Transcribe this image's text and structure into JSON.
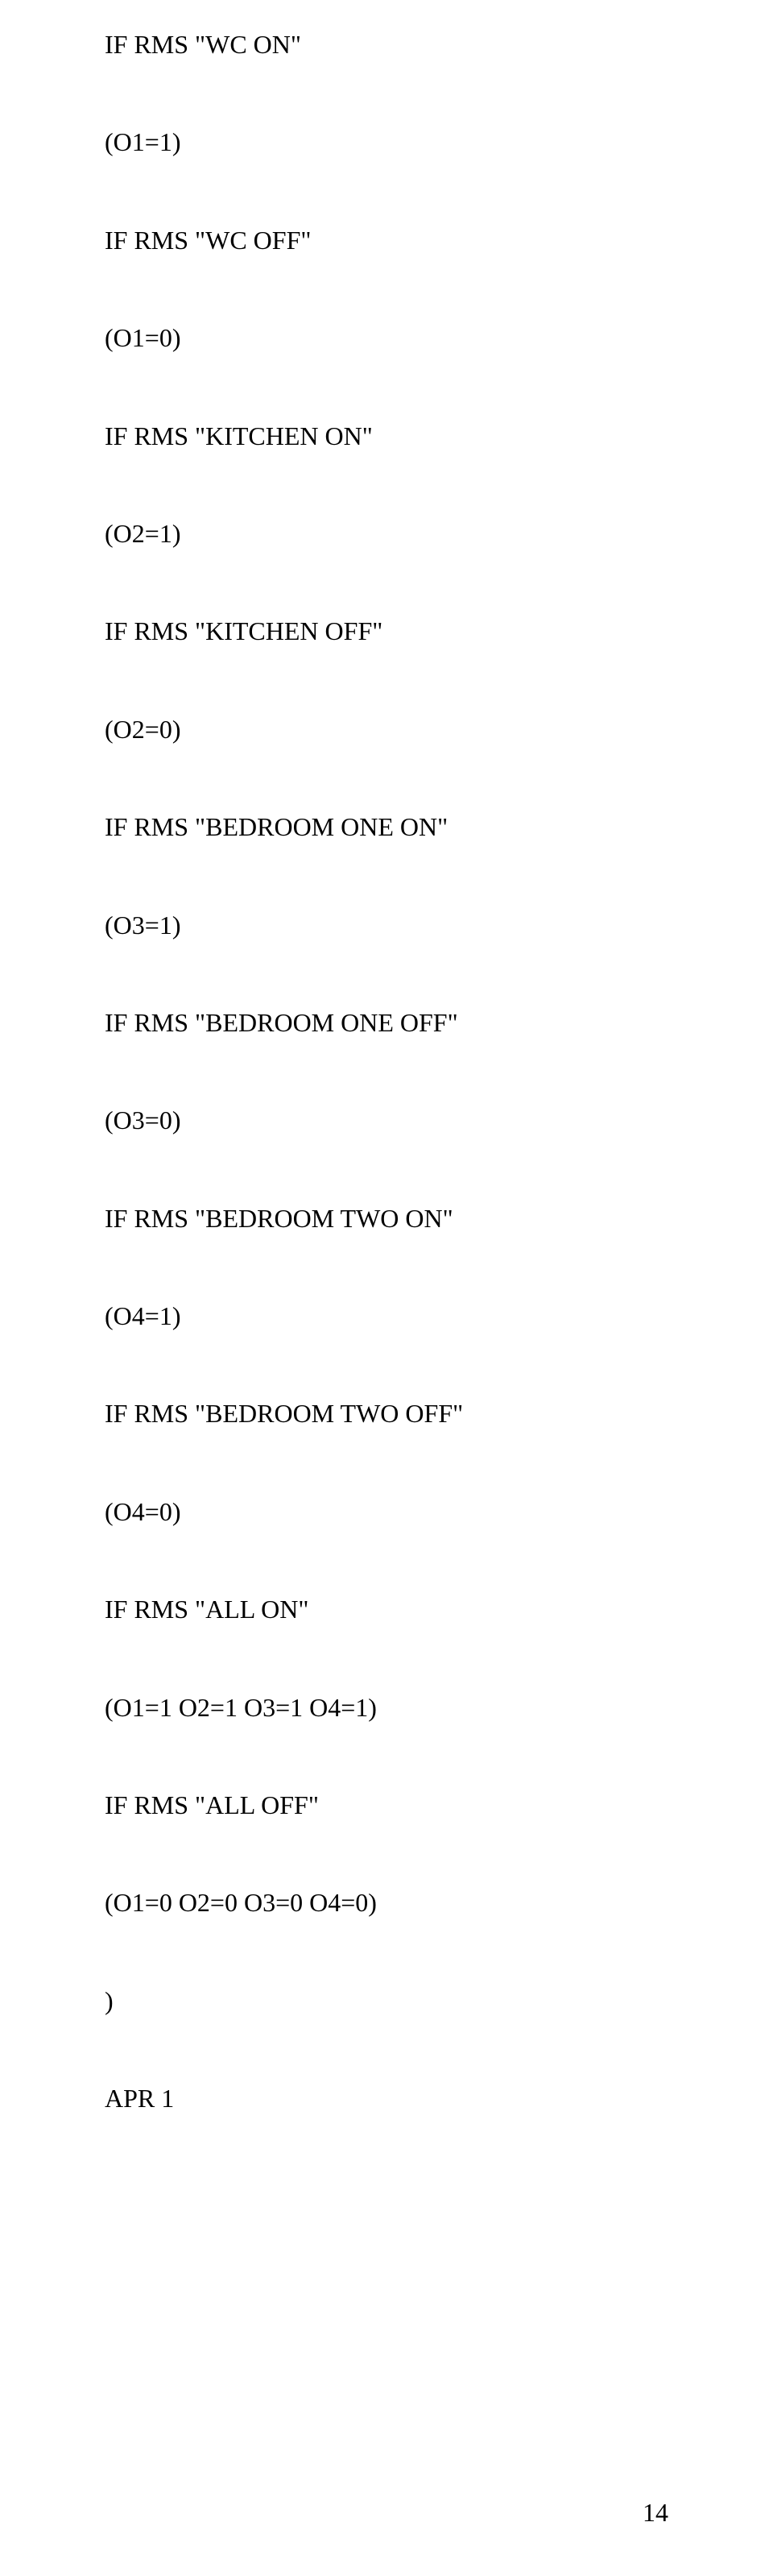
{
  "lines": [
    "IF RMS \"WC ON\"",
    "(O1=1)",
    "IF RMS \"WC OFF\"",
    "(O1=0)",
    "IF RMS \"KITCHEN ON\"",
    "(O2=1)",
    "IF RMS \"KITCHEN OFF\"",
    "(O2=0)",
    "IF RMS \"BEDROOM ONE ON\"",
    "(O3=1)",
    "IF RMS \"BEDROOM ONE OFF\"",
    "(O3=0)",
    "IF RMS \"BEDROOM TWO ON\"",
    "(O4=1)",
    "IF RMS \"BEDROOM TWO OFF\"",
    "(O4=0)",
    "IF RMS \"ALL ON\"",
    "(O1=1 O2=1 O3=1 O4=1)",
    "IF RMS \"ALL OFF\"",
    "(O1=0 O2=0 O3=0 O4=0)",
    ")",
    "APR 1"
  ],
  "pageNumber": "14"
}
